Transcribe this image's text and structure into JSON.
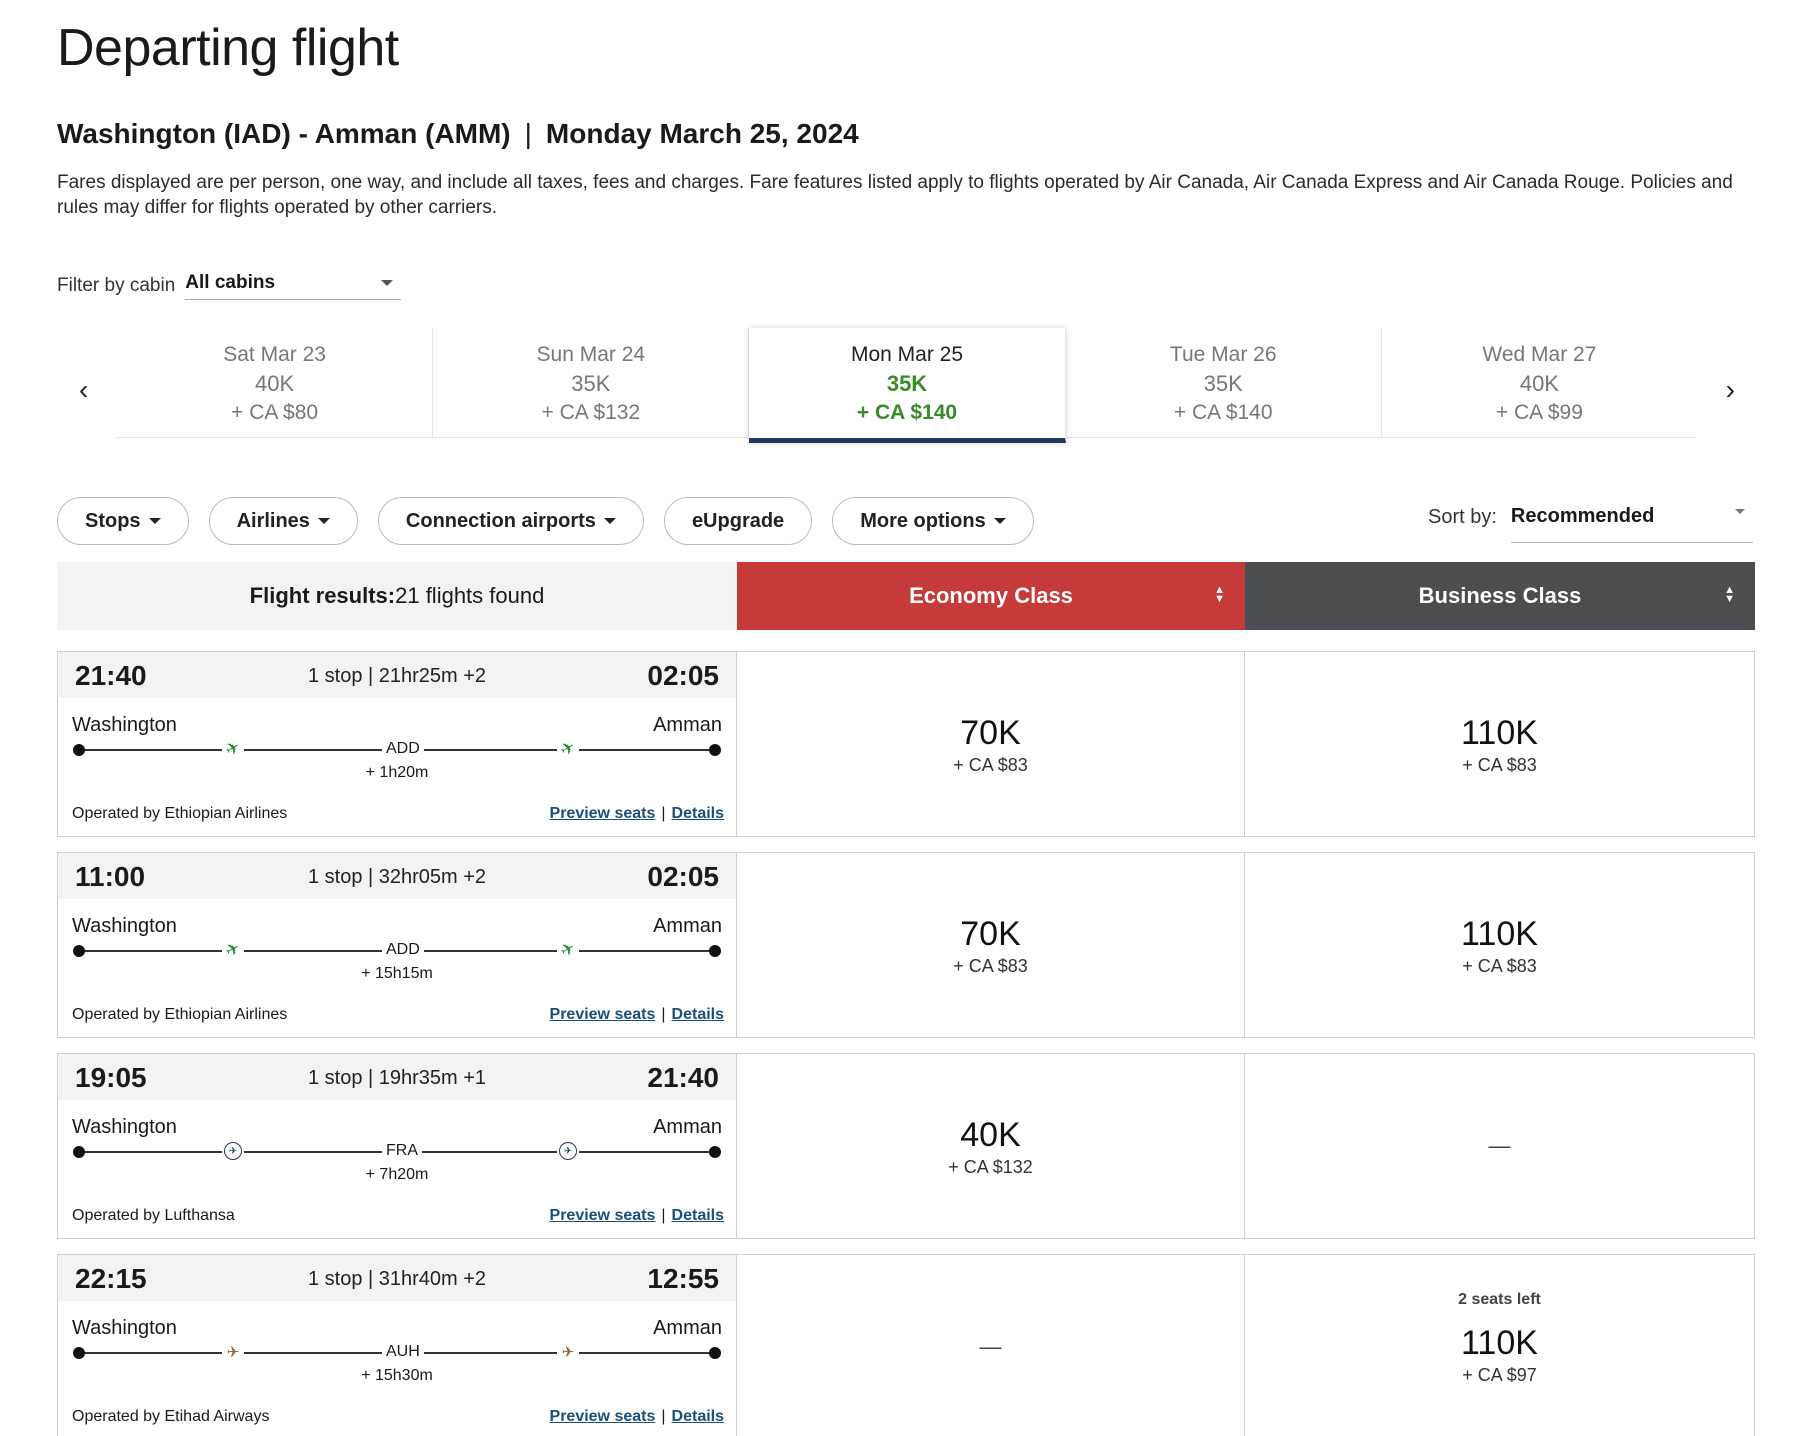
{
  "header": {
    "title": "Departing flight",
    "route": "Washington (IAD) - Amman (AMM)",
    "route_sep": "|",
    "date": "Monday March 25, 2024",
    "disclaimer": "Fares displayed are per person, one way, and include all taxes, fees and charges. Fare features listed apply to flights operated by Air Canada, Air Canada Express and Air Canada Rouge. Policies and rules may differ for flights operated by other carriers."
  },
  "cabin_filter": {
    "label": "Filter by cabin",
    "value": "All cabins"
  },
  "date_nav": {
    "prev_icon": "‹",
    "next_icon": "›",
    "dates": [
      {
        "day": "Sat Mar 23",
        "points": "40K",
        "cash": "+ CA $80"
      },
      {
        "day": "Sun Mar 24",
        "points": "35K",
        "cash": "+ CA $132"
      },
      {
        "day": "Mon Mar 25",
        "points": "35K",
        "cash": "+ CA $140"
      },
      {
        "day": "Tue Mar 26",
        "points": "35K",
        "cash": "+ CA $140"
      },
      {
        "day": "Wed Mar 27",
        "points": "40K",
        "cash": "+ CA $99"
      }
    ]
  },
  "filters": {
    "stops": "Stops",
    "airlines": "Airlines",
    "connection_airports": "Connection airports",
    "eupgrade": "eUpgrade",
    "more_options": "More options"
  },
  "sort": {
    "label": "Sort by:",
    "value": "Recommended"
  },
  "results": {
    "label": "Flight results:",
    "count": "21 flights found",
    "economy": "Economy Class",
    "business": "Business Class"
  },
  "flights": [
    {
      "depart": "21:40",
      "arrive": "02:05",
      "summary": "1 stop | 21hr25m +2",
      "origin": "Washington",
      "destination": "Amman",
      "stop_code": "ADD",
      "layover": "+ 1h20m",
      "operator": "Operated by Ethiopian Airlines",
      "airline_icon": "ethiopian-airlines-logo",
      "preview": "Preview seats",
      "details": "Details",
      "pipe": "|",
      "economy": {
        "points": "70K",
        "cash": "+ CA $83"
      },
      "business": {
        "points": "110K",
        "cash": "+ CA $83"
      }
    },
    {
      "depart": "11:00",
      "arrive": "02:05",
      "summary": "1 stop | 32hr05m +2",
      "origin": "Washington",
      "destination": "Amman",
      "stop_code": "ADD",
      "layover": "+ 15h15m",
      "operator": "Operated by Ethiopian Airlines",
      "airline_icon": "ethiopian-airlines-logo",
      "preview": "Preview seats",
      "details": "Details",
      "pipe": "|",
      "economy": {
        "points": "70K",
        "cash": "+ CA $83"
      },
      "business": {
        "points": "110K",
        "cash": "+ CA $83"
      }
    },
    {
      "depart": "19:05",
      "arrive": "21:40",
      "summary": "1 stop | 19hr35m +1",
      "origin": "Washington",
      "destination": "Amman",
      "stop_code": "FRA",
      "layover": "+ 7h20m",
      "operator": "Operated by Lufthansa",
      "airline_icon": "lufthansa-logo",
      "preview": "Preview seats",
      "details": "Details",
      "pipe": "|",
      "economy": {
        "points": "40K",
        "cash": "+ CA $132"
      },
      "business": {
        "unavailable": "—"
      }
    },
    {
      "depart": "22:15",
      "arrive": "12:55",
      "summary": "1 stop | 31hr40m +2",
      "origin": "Washington",
      "destination": "Amman",
      "stop_code": "AUH",
      "layover": "+ 15h30m",
      "operator": "Operated by Etihad Airways",
      "airline_icon": "etihad-airways-logo",
      "preview": "Preview seats",
      "details": "Details",
      "pipe": "|",
      "economy": {
        "unavailable": "—"
      },
      "business": {
        "seats_left": "2 seats left",
        "points": "110K",
        "cash": "+ CA $97"
      }
    }
  ]
}
